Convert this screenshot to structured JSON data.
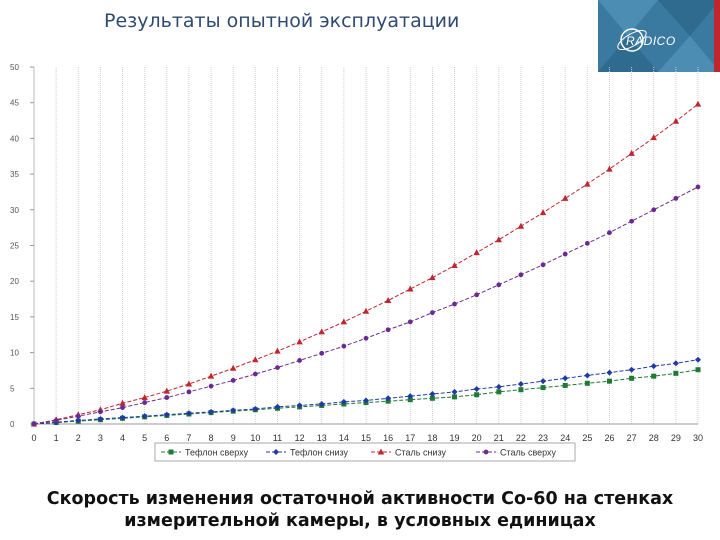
{
  "header": {
    "title": "Результаты опытной эксплуатации",
    "logo_text": "RADICO"
  },
  "caption": {
    "line1": "Скорость изменения остаточной активности Co-60 на стенках",
    "line2": "измерительной камеры, в условных единицах"
  },
  "colors": {
    "title": "#2e4a72",
    "logo_bg": "#3a7aa0",
    "teflon_top": "#1f7a34",
    "teflon_bottom": "#1f3aa6",
    "steel_bottom": "#c0262e",
    "steel_top": "#6a2a96",
    "grid": "#cfcfcf",
    "axis_text": "#555555"
  },
  "chart_data": {
    "type": "line",
    "title": "",
    "xlabel": "",
    "ylabel": "",
    "xlim": [
      0,
      30
    ],
    "ylim": [
      0,
      50
    ],
    "grid": {
      "vertical": true,
      "horizontal": false
    },
    "legend_position": "bottom",
    "x": [
      0,
      1,
      2,
      3,
      4,
      5,
      6,
      7,
      8,
      9,
      10,
      11,
      12,
      13,
      14,
      15,
      16,
      17,
      18,
      19,
      20,
      21,
      22,
      23,
      24,
      25,
      26,
      27,
      28,
      29,
      30
    ],
    "x_ticks": [
      "0",
      "1",
      "2",
      "3",
      "4",
      "5",
      "6",
      "7",
      "8",
      "9",
      "10",
      "11",
      "12",
      "13",
      "14",
      "15",
      "16",
      "17",
      "18",
      "19",
      "20",
      "21",
      "22",
      "23",
      "24",
      "25",
      "26",
      "27",
      "28",
      "29",
      "30"
    ],
    "y_ticks": [
      "0",
      "5",
      "10",
      "15",
      "20",
      "25",
      "30",
      "35",
      "40",
      "45",
      "50"
    ],
    "series": [
      {
        "name": "Тефлон сверху",
        "marker": "square",
        "values": [
          0,
          0.2,
          0.4,
          0.6,
          0.8,
          1.0,
          1.2,
          1.4,
          1.6,
          1.8,
          2.0,
          2.2,
          2.4,
          2.6,
          2.8,
          3.0,
          3.2,
          3.4,
          3.6,
          3.8,
          4.1,
          4.5,
          4.8,
          5.1,
          5.4,
          5.7,
          6.0,
          6.4,
          6.7,
          7.1,
          7.6
        ]
      },
      {
        "name": "Тефлон снизу",
        "marker": "diamond",
        "values": [
          0,
          0.25,
          0.5,
          0.7,
          0.9,
          1.1,
          1.3,
          1.5,
          1.7,
          1.9,
          2.1,
          2.4,
          2.6,
          2.8,
          3.1,
          3.3,
          3.6,
          3.9,
          4.2,
          4.5,
          4.9,
          5.2,
          5.6,
          6.0,
          6.4,
          6.8,
          7.2,
          7.6,
          8.1,
          8.5,
          9.0
        ]
      },
      {
        "name": "Сталь снизу",
        "marker": "triangle",
        "values": [
          0,
          0.6,
          1.3,
          2.0,
          2.9,
          3.7,
          4.6,
          5.6,
          6.7,
          7.8,
          9.0,
          10.2,
          11.5,
          12.9,
          14.3,
          15.8,
          17.3,
          18.9,
          20.5,
          22.2,
          24.0,
          25.8,
          27.7,
          29.6,
          31.6,
          33.6,
          35.7,
          37.9,
          40.1,
          42.4,
          44.8
        ]
      },
      {
        "name": "Сталь сверху",
        "marker": "circle",
        "values": [
          0,
          0.5,
          1.1,
          1.7,
          2.3,
          3.0,
          3.7,
          4.5,
          5.3,
          6.1,
          7.0,
          7.9,
          8.9,
          9.9,
          10.9,
          12.0,
          13.2,
          14.3,
          15.6,
          16.8,
          18.1,
          19.5,
          20.9,
          22.3,
          23.8,
          25.3,
          26.8,
          28.4,
          30.0,
          31.6,
          33.2
        ]
      }
    ]
  }
}
